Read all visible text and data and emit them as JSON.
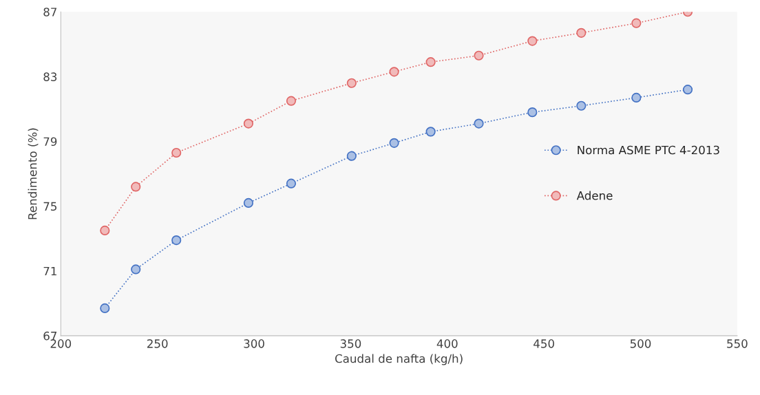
{
  "chart_data": {
    "type": "line",
    "xlabel": "Caudal de nafta (kg/h)",
    "ylabel": "Rendimento (%)",
    "x": [
      222.8,
      238.8,
      259.8,
      297.1,
      319.2,
      350.5,
      372.5,
      391.4,
      416.3,
      444.0,
      469.3,
      497.8,
      524.4
    ],
    "series": [
      {
        "name": "Norma ASME PTC 4-2013",
        "color": "#4472c4",
        "values": [
          68.7,
          71.1,
          72.9,
          75.2,
          76.4,
          78.1,
          78.9,
          79.6,
          80.1,
          80.8,
          81.2,
          81.7,
          82.2
        ]
      },
      {
        "name": "Adene",
        "color": "#e06666",
        "values": [
          73.5,
          76.2,
          78.3,
          80.1,
          81.5,
          82.6,
          83.3,
          83.9,
          84.3,
          85.2,
          85.7,
          86.3,
          87.0
        ]
      }
    ],
    "xlim": [
      200,
      550
    ],
    "xticks": [
      200,
      250,
      300,
      350,
      400,
      450,
      500,
      550
    ],
    "ylim": [
      67,
      87
    ],
    "yticks": [
      67,
      71,
      75,
      79,
      83,
      87
    ],
    "grid": false,
    "legend": "right",
    "marker": "circle",
    "line_style": "dotted"
  }
}
